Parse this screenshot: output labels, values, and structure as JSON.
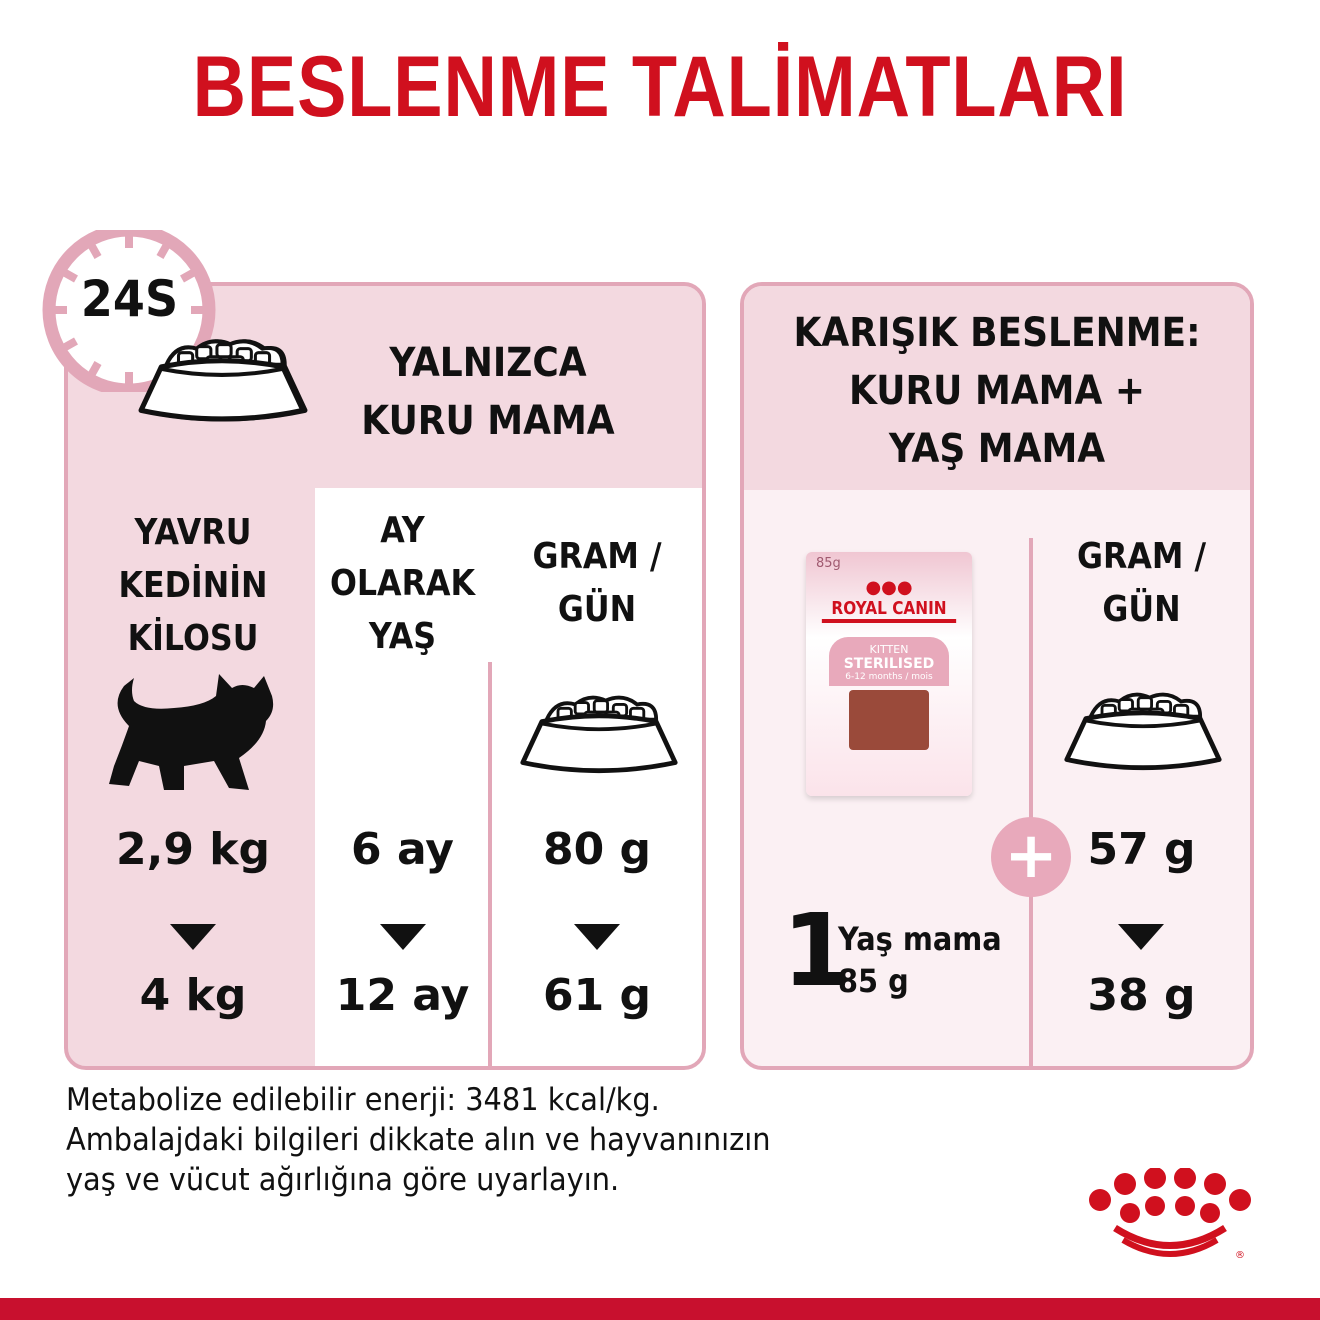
{
  "title": "BESLENME TALİMATLARI",
  "clock_label": "24S",
  "dry_only": {
    "heading_1": "YALNIZCA",
    "heading_2": "KURU MAMA",
    "col_weight": [
      "YAVRU",
      "KEDİNİN",
      "KİLOSU"
    ],
    "col_age": [
      "AY",
      "OLARAK",
      "YAŞ"
    ],
    "col_gram": [
      "GRAM /",
      "GÜN"
    ],
    "weight_from": "2,9 kg",
    "weight_to": "4 kg",
    "age_from": "6 ay",
    "age_to": "12 ay",
    "gram_from": "80 g",
    "gram_to": "61 g"
  },
  "mixed": {
    "heading": [
      "KARIŞIK BESLENME:",
      "KURU MAMA +",
      "YAŞ MAMA"
    ],
    "col_gram": [
      "GRAM /",
      "GÜN"
    ],
    "pouch": {
      "weight": "85g",
      "brand": "ROYAL CANIN",
      "line1": "KITTEN",
      "line2": "STERILISED",
      "range": "6-12 months / mois"
    },
    "wet_count": "1",
    "wet_label": "Yaş mama",
    "wet_weight": "85 g",
    "gram_from": "57 g",
    "gram_to": "38 g"
  },
  "footer": [
    "Metabolize edilebilir enerji: 3481 kcal/kg.",
    "Ambalajdaki bilgileri dikkate alın ve hayvanınızın",
    "yaş ve vücut ağırlığına göre uyarlayın."
  ],
  "logo_text": "ROYAL CANIN",
  "colors": {
    "brand_red": "#d0101e",
    "pink_border": "#e2a7b8",
    "pink_fill": "#f3d9e0"
  }
}
